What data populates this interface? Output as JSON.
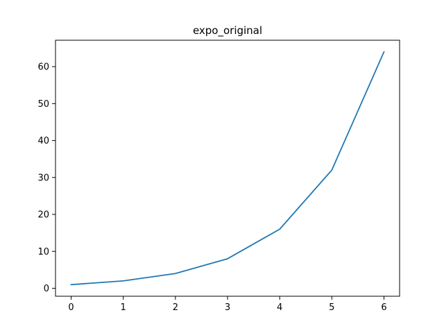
{
  "chart_data": {
    "type": "line",
    "title": "expo_original",
    "xlabel": "",
    "ylabel": "",
    "x": [
      0,
      1,
      2,
      3,
      4,
      5,
      6
    ],
    "series": [
      {
        "values": [
          1,
          2,
          4,
          8,
          16,
          32,
          64
        ],
        "color": "#1f77b4"
      }
    ],
    "xticks": [
      0,
      1,
      2,
      3,
      4,
      5,
      6
    ],
    "yticks": [
      0,
      10,
      20,
      30,
      40,
      50,
      60
    ],
    "xlim": [
      -0.3,
      6.3
    ],
    "ylim": [
      -2.15,
      67.15
    ],
    "grid": false,
    "legend": "none"
  }
}
